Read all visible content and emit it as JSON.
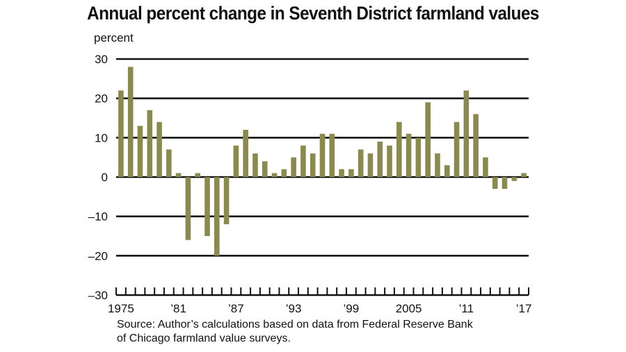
{
  "chart_data": {
    "type": "bar",
    "title": "Annual percent change in Seventh District farmland values",
    "ylabel": "percent",
    "xlabel": "",
    "ylim": [
      -30,
      30
    ],
    "yticks": [
      30,
      20,
      10,
      0,
      -10,
      -20,
      -30
    ],
    "ytick_labels": [
      "30",
      "20",
      "10",
      "0",
      "–10",
      "–20",
      "–30"
    ],
    "grid": "horizontal",
    "bar_color": "#8a8a4e",
    "categories": [
      1975,
      1976,
      1977,
      1978,
      1979,
      1980,
      1981,
      1982,
      1983,
      1984,
      1985,
      1986,
      1987,
      1988,
      1989,
      1990,
      1991,
      1992,
      1993,
      1994,
      1995,
      1996,
      1997,
      1998,
      1999,
      2000,
      2001,
      2002,
      2003,
      2004,
      2005,
      2006,
      2007,
      2008,
      2009,
      2010,
      2011,
      2012,
      2013,
      2014,
      2015,
      2016,
      2017
    ],
    "values": [
      22,
      28,
      13,
      17,
      14,
      7,
      1,
      -16,
      1,
      -15,
      -20,
      -12,
      8,
      12,
      6,
      4,
      1,
      2,
      5,
      8,
      6,
      11,
      11,
      2,
      2,
      7,
      6,
      9,
      8,
      14,
      11,
      10,
      19,
      6,
      3,
      14,
      22,
      16,
      5,
      -3,
      -3,
      -1,
      1
    ],
    "xtick_labels": [
      {
        "year": 1975,
        "label": "1975"
      },
      {
        "year": 1981,
        "label": "’81"
      },
      {
        "year": 1987,
        "label": "’87"
      },
      {
        "year": 1993,
        "label": "’93"
      },
      {
        "year": 1999,
        "label": "’99"
      },
      {
        "year": 2005,
        "label": "2005"
      },
      {
        "year": 2011,
        "label": "’11"
      },
      {
        "year": 2017,
        "label": "’17"
      }
    ]
  },
  "source": {
    "line1": "Source: Author’s calculations based on data from Federal Reserve Bank",
    "line2": "of Chicago farmland value surveys."
  }
}
